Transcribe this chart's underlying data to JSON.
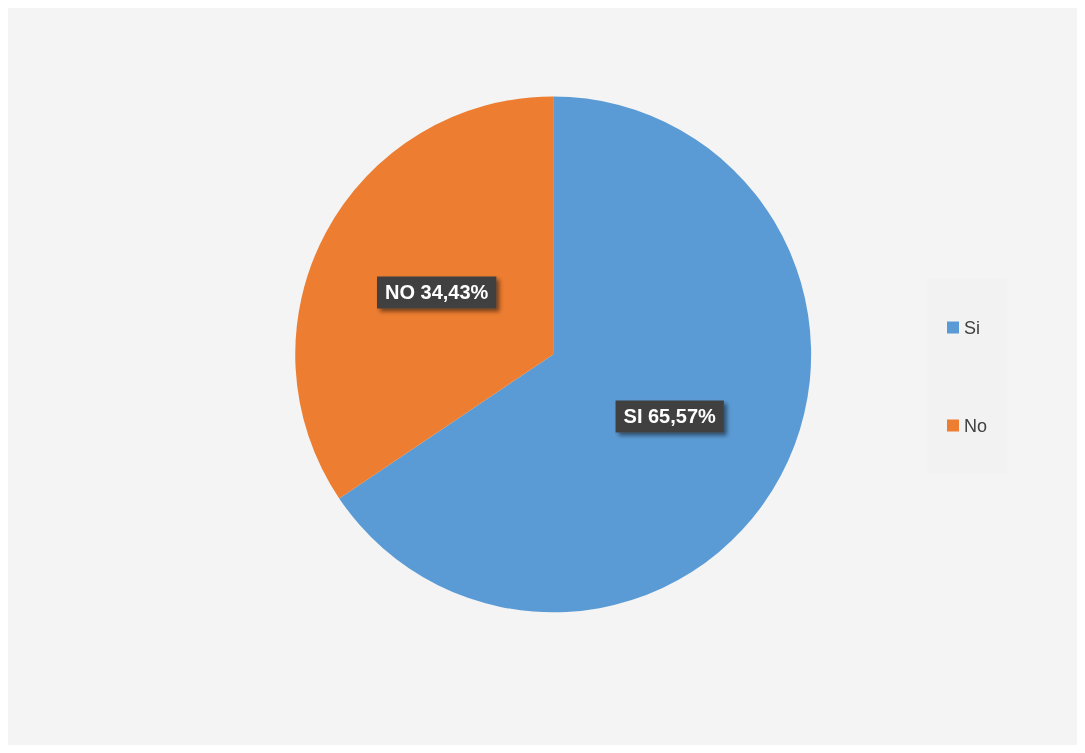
{
  "chart_data": {
    "type": "pie",
    "categories": [
      "Si",
      "No"
    ],
    "values": [
      65.57,
      34.43
    ],
    "colors": [
      "#5b9bd5",
      "#ed7d31"
    ],
    "value_labels": [
      "SI 65,57%",
      "NO 34,43%"
    ],
    "legend": "right"
  }
}
